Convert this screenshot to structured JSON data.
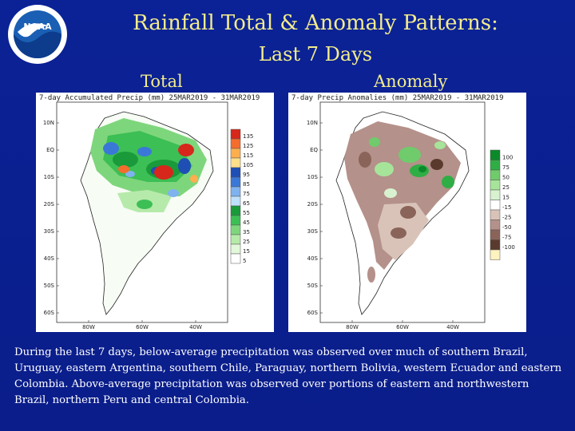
{
  "slide": {
    "title_line1": "Rainfall Total & Anomaly Patterns:",
    "title_line2": "Last 7 Days",
    "total_label": "Total",
    "anomaly_label": "Anomaly",
    "logo_text": "NOAA",
    "caption": "During the last 7 days, below-average precipitation was observed over much of southern Brazil, Uruguay, eastern Argentina, southern Chile, Paraguay, northern Bolivia, western Ecuador and eastern Colombia.  Above-average precipitation was observed over portions of eastern and northwestern Brazil, northern Peru and central Colombia."
  },
  "total_map": {
    "header": "7-day Accumulated Precip (mm) 25MAR2019 - 31MAR2019",
    "lat_ticks": [
      "10N",
      "EQ",
      "10S",
      "20S",
      "30S",
      "40S",
      "50S",
      "60S"
    ],
    "lon_ticks": [
      "80W",
      "60W",
      "40W"
    ],
    "legend": [
      {
        "label": "135",
        "color": "#d7261b"
      },
      {
        "label": "125",
        "color": "#f46d2d"
      },
      {
        "label": "115",
        "color": "#fdae4e"
      },
      {
        "label": "105",
        "color": "#fee08b"
      },
      {
        "label": "95",
        "color": "#1f4fb5"
      },
      {
        "label": "85",
        "color": "#3a78d8"
      },
      {
        "label": "75",
        "color": "#7fb2ef"
      },
      {
        "label": "65",
        "color": "#bfe0fb"
      },
      {
        "label": "55",
        "color": "#1a9a3a"
      },
      {
        "label": "45",
        "color": "#3cbf55"
      },
      {
        "label": "35",
        "color": "#7ed67c"
      },
      {
        "label": "25",
        "color": "#b6eaaa"
      },
      {
        "label": "15",
        "color": "#e3f7da"
      },
      {
        "label": "5",
        "color": "#ffffff"
      }
    ]
  },
  "anomaly_map": {
    "header": "7-day Precip Anomalies (mm) 25MAR2019 - 31MAR2019",
    "lat_ticks": [
      "10N",
      "EQ",
      "10S",
      "20S",
      "30S",
      "40S",
      "50S",
      "60S"
    ],
    "lon_ticks": [
      "80W",
      "60W",
      "40W"
    ],
    "legend": [
      {
        "label": "100",
        "color": "#0b8a2a"
      },
      {
        "label": "75",
        "color": "#2fae45"
      },
      {
        "label": "50",
        "color": "#6fcb6b"
      },
      {
        "label": "25",
        "color": "#a6e49a"
      },
      {
        "label": "15",
        "color": "#d8f2cf"
      },
      {
        "label": "-15",
        "color": "#ffffff"
      },
      {
        "label": "-25",
        "color": "#d9c3b8"
      },
      {
        "label": "-50",
        "color": "#b4918a"
      },
      {
        "label": "-75",
        "color": "#8a6459"
      },
      {
        "label": "-100",
        "color": "#5b3a2e"
      },
      {
        "label": "",
        "color": "#fff3bf"
      }
    ]
  }
}
